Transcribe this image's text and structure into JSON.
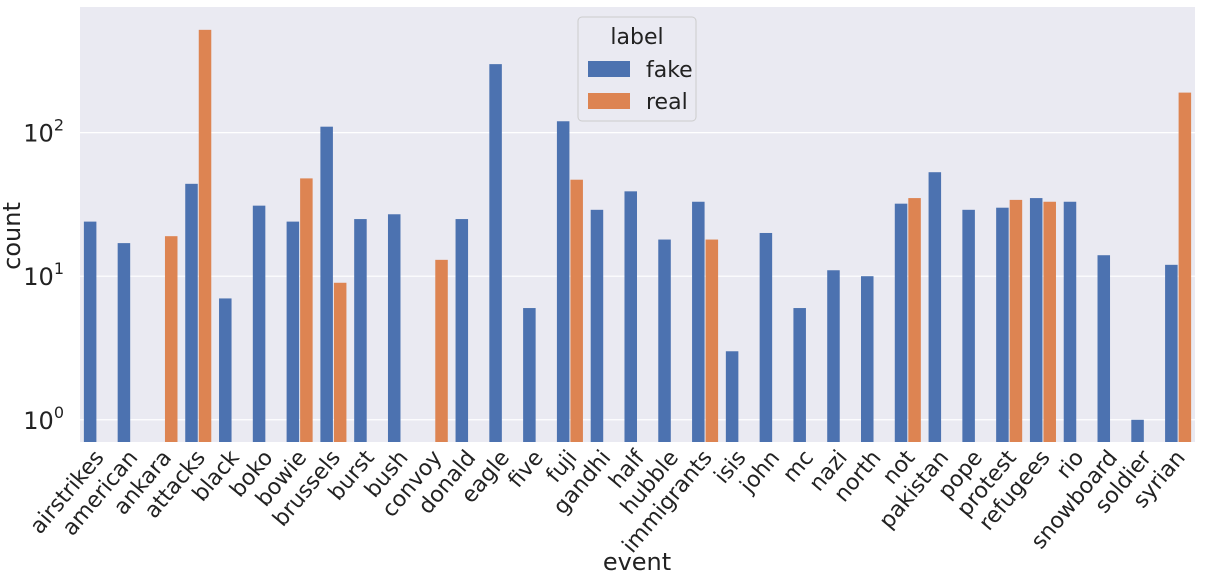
{
  "chart_data": {
    "type": "bar",
    "title": "",
    "xlabel": "event",
    "ylabel": "count",
    "yscale": "log",
    "ylim": [
      0.7,
      750
    ],
    "yticks": [
      {
        "value": 1,
        "base": "10",
        "exp": "0"
      },
      {
        "value": 10,
        "base": "10",
        "exp": "1"
      },
      {
        "value": 100,
        "base": "10",
        "exp": "2"
      }
    ],
    "grid": true,
    "legend": {
      "title": "label",
      "position": "top-center"
    },
    "categories": [
      "airstrikes",
      "american",
      "ankara",
      "attacks",
      "black",
      "boko",
      "bowie",
      "brussels",
      "burst",
      "bush",
      "convoy",
      "donald",
      "eagle",
      "five",
      "fuji",
      "gandhi",
      "half",
      "hubble",
      "immigrants",
      "isis",
      "john",
      "mc",
      "nazi",
      "north",
      "not",
      "pakistan",
      "pope",
      "protest",
      "refugees",
      "rio",
      "snowboard",
      "soldier",
      "syrian"
    ],
    "series": [
      {
        "name": "fake",
        "color": "#4c72b0",
        "values": [
          24,
          17,
          null,
          44,
          7,
          31,
          24,
          110,
          25,
          27,
          null,
          25,
          300,
          6,
          120,
          29,
          39,
          18,
          33,
          3,
          20,
          6,
          11,
          10,
          32,
          53,
          29,
          30,
          35,
          33,
          14,
          1,
          12
        ]
      },
      {
        "name": "real",
        "color": "#dd8452",
        "values": [
          null,
          null,
          19,
          520,
          null,
          null,
          48,
          9,
          null,
          null,
          13,
          null,
          null,
          null,
          47,
          null,
          null,
          null,
          18,
          null,
          null,
          null,
          null,
          null,
          35,
          null,
          null,
          34,
          33,
          null,
          null,
          null,
          190
        ]
      }
    ]
  }
}
